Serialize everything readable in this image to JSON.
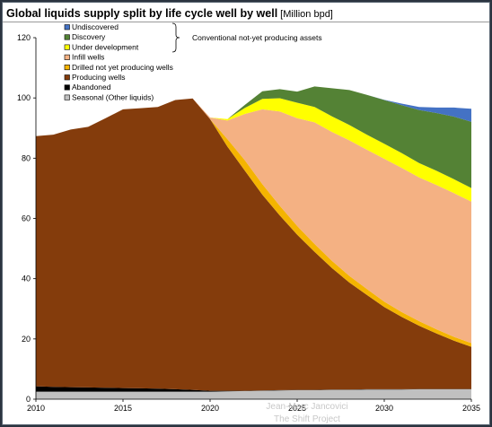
{
  "header": {
    "title": "Global liquids supply split by life cycle well by well",
    "units": "[Million bpd]"
  },
  "annotation": {
    "text": "Conventional not-yet producing assets"
  },
  "watermark": {
    "line1": "Jean-Marc Jancovici",
    "line2": "The Shift Project"
  },
  "chart_data": {
    "type": "area",
    "stacked": true,
    "x": [
      2010,
      2011,
      2012,
      2013,
      2014,
      2015,
      2016,
      2017,
      2018,
      2019,
      2020,
      2021,
      2022,
      2023,
      2024,
      2025,
      2026,
      2027,
      2028,
      2029,
      2030,
      2031,
      2032,
      2033,
      2034,
      2035
    ],
    "xticks": [
      2010,
      2015,
      2020,
      2025,
      2030,
      2035
    ],
    "ylim": [
      0,
      120
    ],
    "yticks": [
      0,
      20,
      40,
      60,
      80,
      100,
      120
    ],
    "legend_position": "top-left",
    "legend_order": [
      "Undiscovered",
      "Discovery",
      "Under development",
      "Infill wells",
      "Drilled not yet producing wells",
      "Producing wells",
      "Abandoned",
      "Seasonal (Other liquids)"
    ],
    "series": [
      {
        "name": "Seasonal (Other liquids)",
        "color": "#c0c0c0",
        "values": [
          2.5,
          2.5,
          2.5,
          2.5,
          2.5,
          2.5,
          2.5,
          2.5,
          2.5,
          2.5,
          2.5,
          2.6,
          2.7,
          2.8,
          2.9,
          3.0,
          3.0,
          3.1,
          3.1,
          3.2,
          3.2,
          3.2,
          3.3,
          3.3,
          3.3,
          3.3
        ]
      },
      {
        "name": "Abandoned",
        "color": "#000000",
        "values": [
          1.8,
          1.6,
          1.5,
          1.4,
          1.3,
          1.2,
          1.1,
          1.0,
          0.8,
          0.6,
          0.3,
          0.2,
          0.1,
          0.1,
          0.1,
          0.1,
          0.1,
          0.1,
          0.1,
          0.1,
          0.1,
          0.1,
          0.1,
          0.1,
          0.1,
          0.1
        ]
      },
      {
        "name": "Producing wells",
        "color": "#843c0c",
        "values": [
          83,
          83.7,
          85.5,
          86.5,
          89.5,
          92.5,
          93,
          93.5,
          96,
          96.7,
          90.2,
          81,
          73,
          65,
          58,
          51.5,
          45.8,
          40.3,
          35.5,
          31.3,
          27.3,
          24,
          21,
          18.4,
          16,
          14
        ]
      },
      {
        "name": "Drilled not yet producing wells",
        "color": "#f4b400",
        "values": [
          0,
          0,
          0,
          0,
          0,
          0,
          0,
          0,
          0,
          0,
          0,
          2.5,
          3.5,
          3.5,
          3.2,
          2.9,
          2.6,
          2.4,
          2.2,
          2.0,
          1.8,
          1.6,
          1.5,
          1.4,
          1.3,
          1.2
        ]
      },
      {
        "name": "Infill wells",
        "color": "#f4b183",
        "values": [
          0,
          0,
          0,
          0,
          0,
          0,
          0,
          0,
          0,
          0,
          0.5,
          6.2,
          15.4,
          24.8,
          31.3,
          35.8,
          40.4,
          42.8,
          45.0,
          46.2,
          47.4,
          47.9,
          47.7,
          47.9,
          47.7,
          47.0
        ]
      },
      {
        "name": "Under development",
        "color": "#ffff00",
        "values": [
          0,
          0,
          0,
          0,
          0,
          0,
          0,
          0,
          0,
          0,
          0,
          0.5,
          2.0,
          3.5,
          4.4,
          5.1,
          5.1,
          5.2,
          5.1,
          5.0,
          5.0,
          4.9,
          4.8,
          4.7,
          4.6,
          4.5
        ]
      },
      {
        "name": "Discovery",
        "color": "#548235",
        "values": [
          0,
          0,
          0,
          0,
          0,
          0,
          0,
          0,
          0,
          0,
          0,
          0,
          1.0,
          2.5,
          3.0,
          3.7,
          6.8,
          9.3,
          11.6,
          13.2,
          14.5,
          15.9,
          17.6,
          19.2,
          20.8,
          22.0
        ]
      },
      {
        "name": "Undiscovered",
        "color": "#4472c4",
        "values": [
          0,
          0,
          0,
          0,
          0,
          0,
          0,
          0,
          0,
          0,
          0,
          0,
          0,
          0,
          0,
          0,
          0,
          0,
          0,
          0,
          0.1,
          0.5,
          1.0,
          1.8,
          3.0,
          4.3
        ]
      }
    ]
  }
}
